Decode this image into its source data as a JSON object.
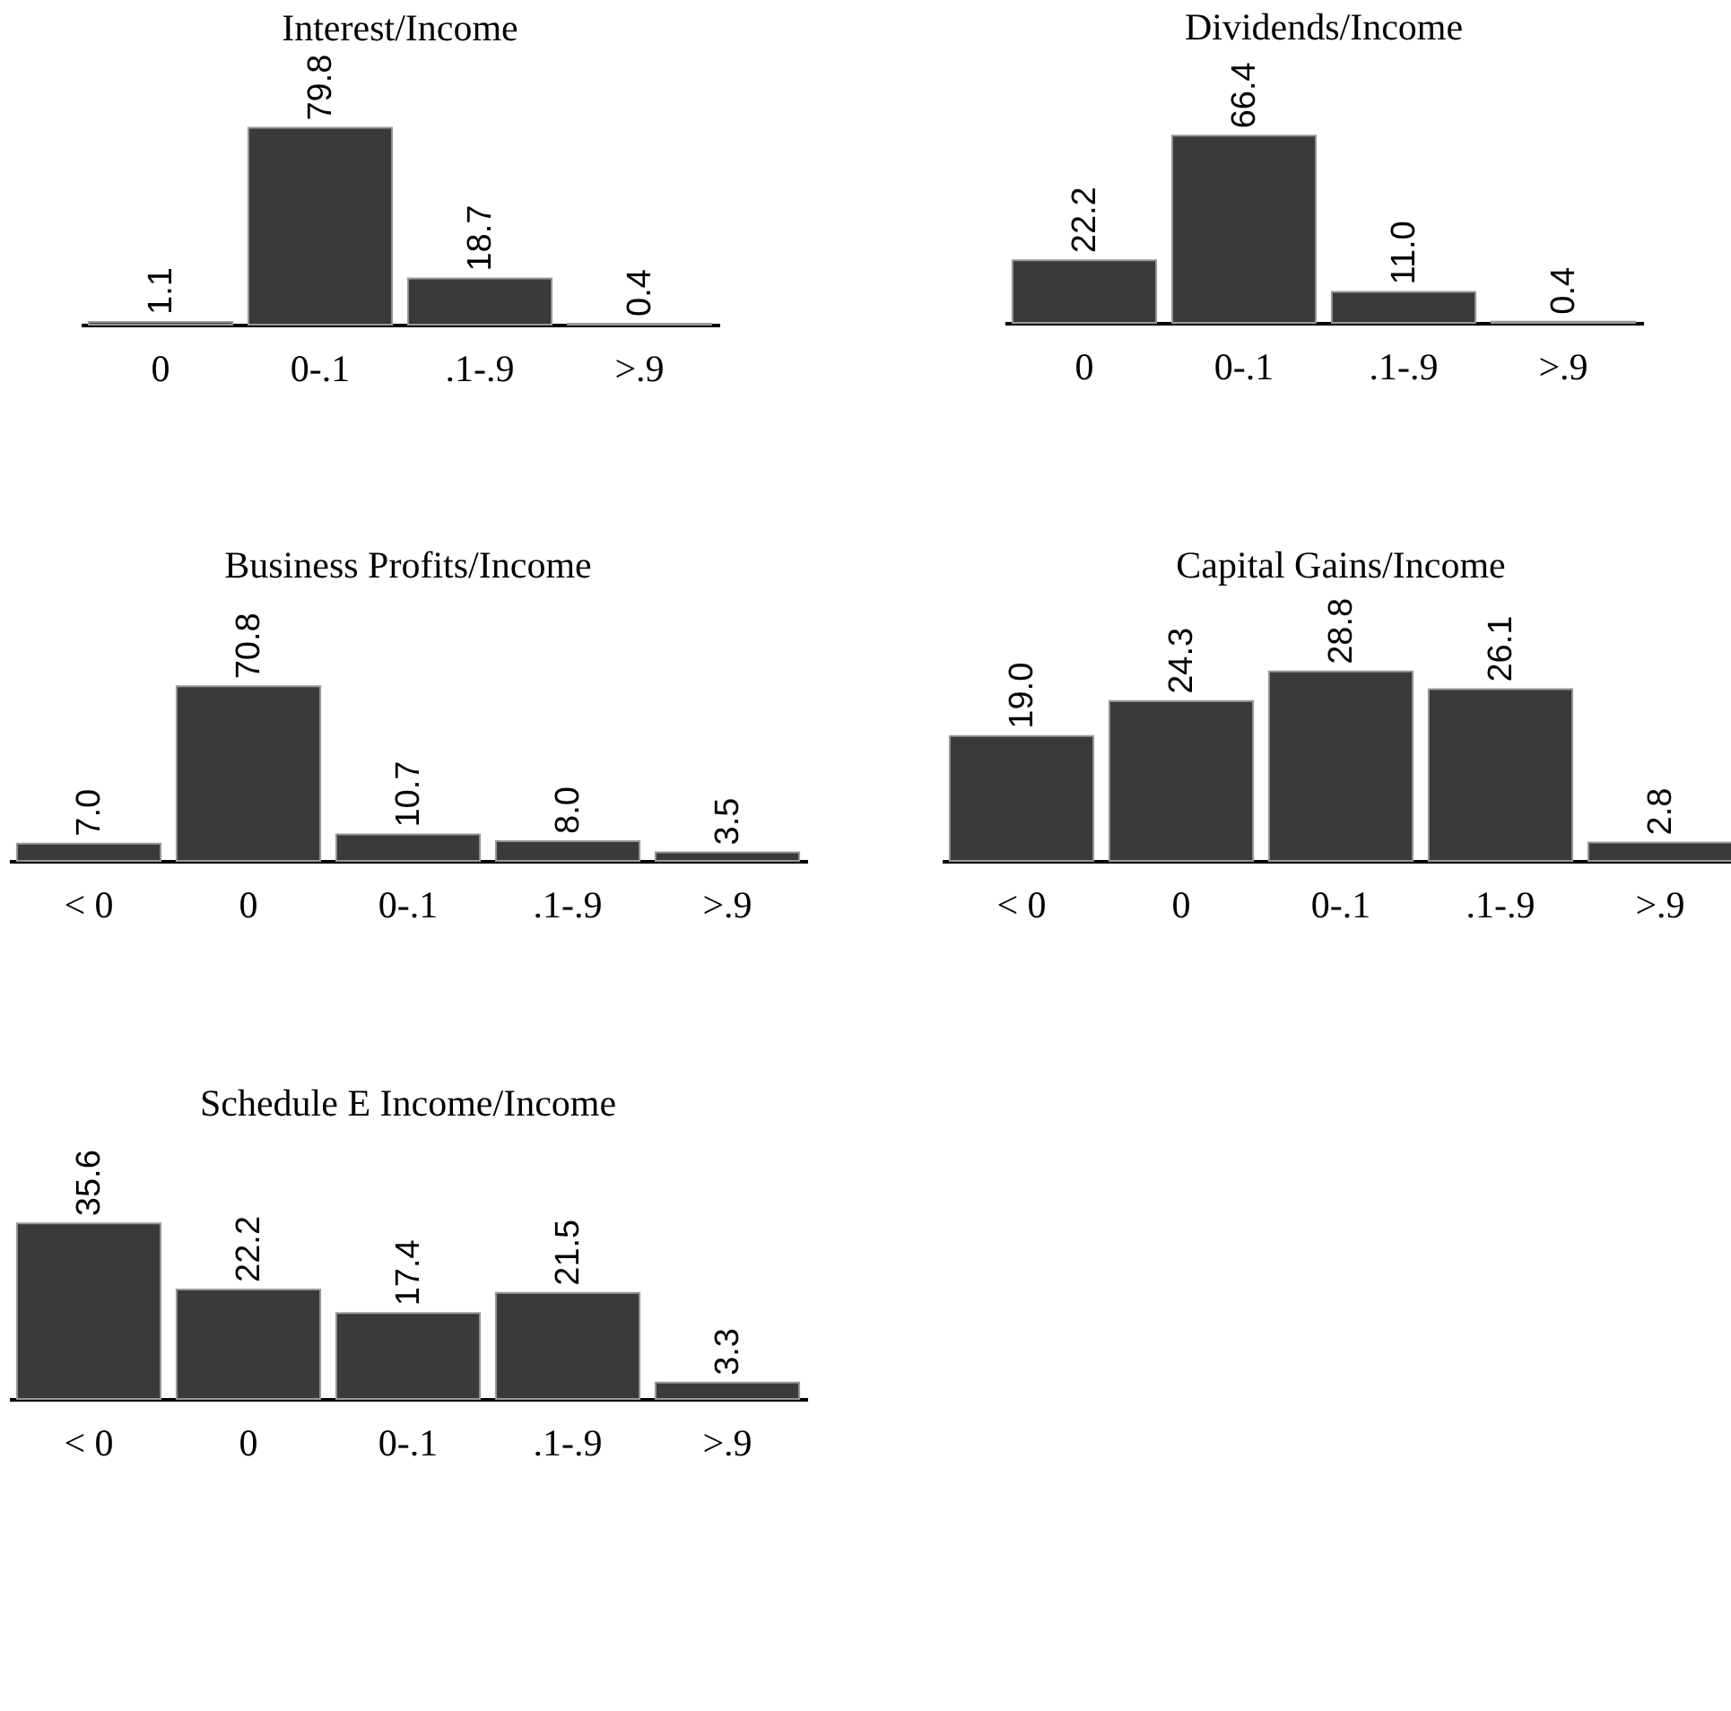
{
  "chart_data": [
    {
      "type": "bar",
      "title": "Interest/Income",
      "categories": [
        "0",
        "0-.1",
        ".1-.9",
        ">.9"
      ],
      "values": [
        1.1,
        79.8,
        18.7,
        0.4
      ],
      "color": "#3a3a3a",
      "data_labels": true
    },
    {
      "type": "bar",
      "title": "Dividends/Income",
      "categories": [
        "0",
        "0-.1",
        ".1-.9",
        ">.9"
      ],
      "values": [
        22.2,
        66.4,
        11.0,
        0.4
      ],
      "color": "#3a3a3a",
      "data_labels": true,
      "value_labels": [
        "22.2",
        "66.4",
        "11.0",
        "0.4"
      ]
    },
    {
      "type": "bar",
      "title": "Business Profits/Income",
      "categories": [
        "< 0",
        "0",
        "0-.1",
        ".1-.9",
        ">.9"
      ],
      "values": [
        7.0,
        70.8,
        10.7,
        8.0,
        3.5
      ],
      "color": "#3a3a3a",
      "data_labels": true,
      "value_labels": [
        "7.0",
        "70.8",
        "10.7",
        "8.0",
        "3.5"
      ]
    },
    {
      "type": "bar",
      "title": "Capital Gains/Income",
      "categories": [
        "< 0",
        "0",
        "0-.1",
        ".1-.9",
        ">.9"
      ],
      "values": [
        19.0,
        24.3,
        28.8,
        26.1,
        2.8
      ],
      "color": "#3a3a3a",
      "data_labels": true,
      "value_labels": [
        "19.0",
        "24.3",
        "28.8",
        "26.1",
        "2.8"
      ]
    },
    {
      "type": "bar",
      "title": "Schedule E Income/Income",
      "categories": [
        "< 0",
        "0",
        "0-.1",
        ".1-.9",
        ">.9"
      ],
      "values": [
        35.6,
        22.2,
        17.4,
        21.5,
        3.3
      ],
      "color": "#3a3a3a",
      "data_labels": true
    }
  ]
}
